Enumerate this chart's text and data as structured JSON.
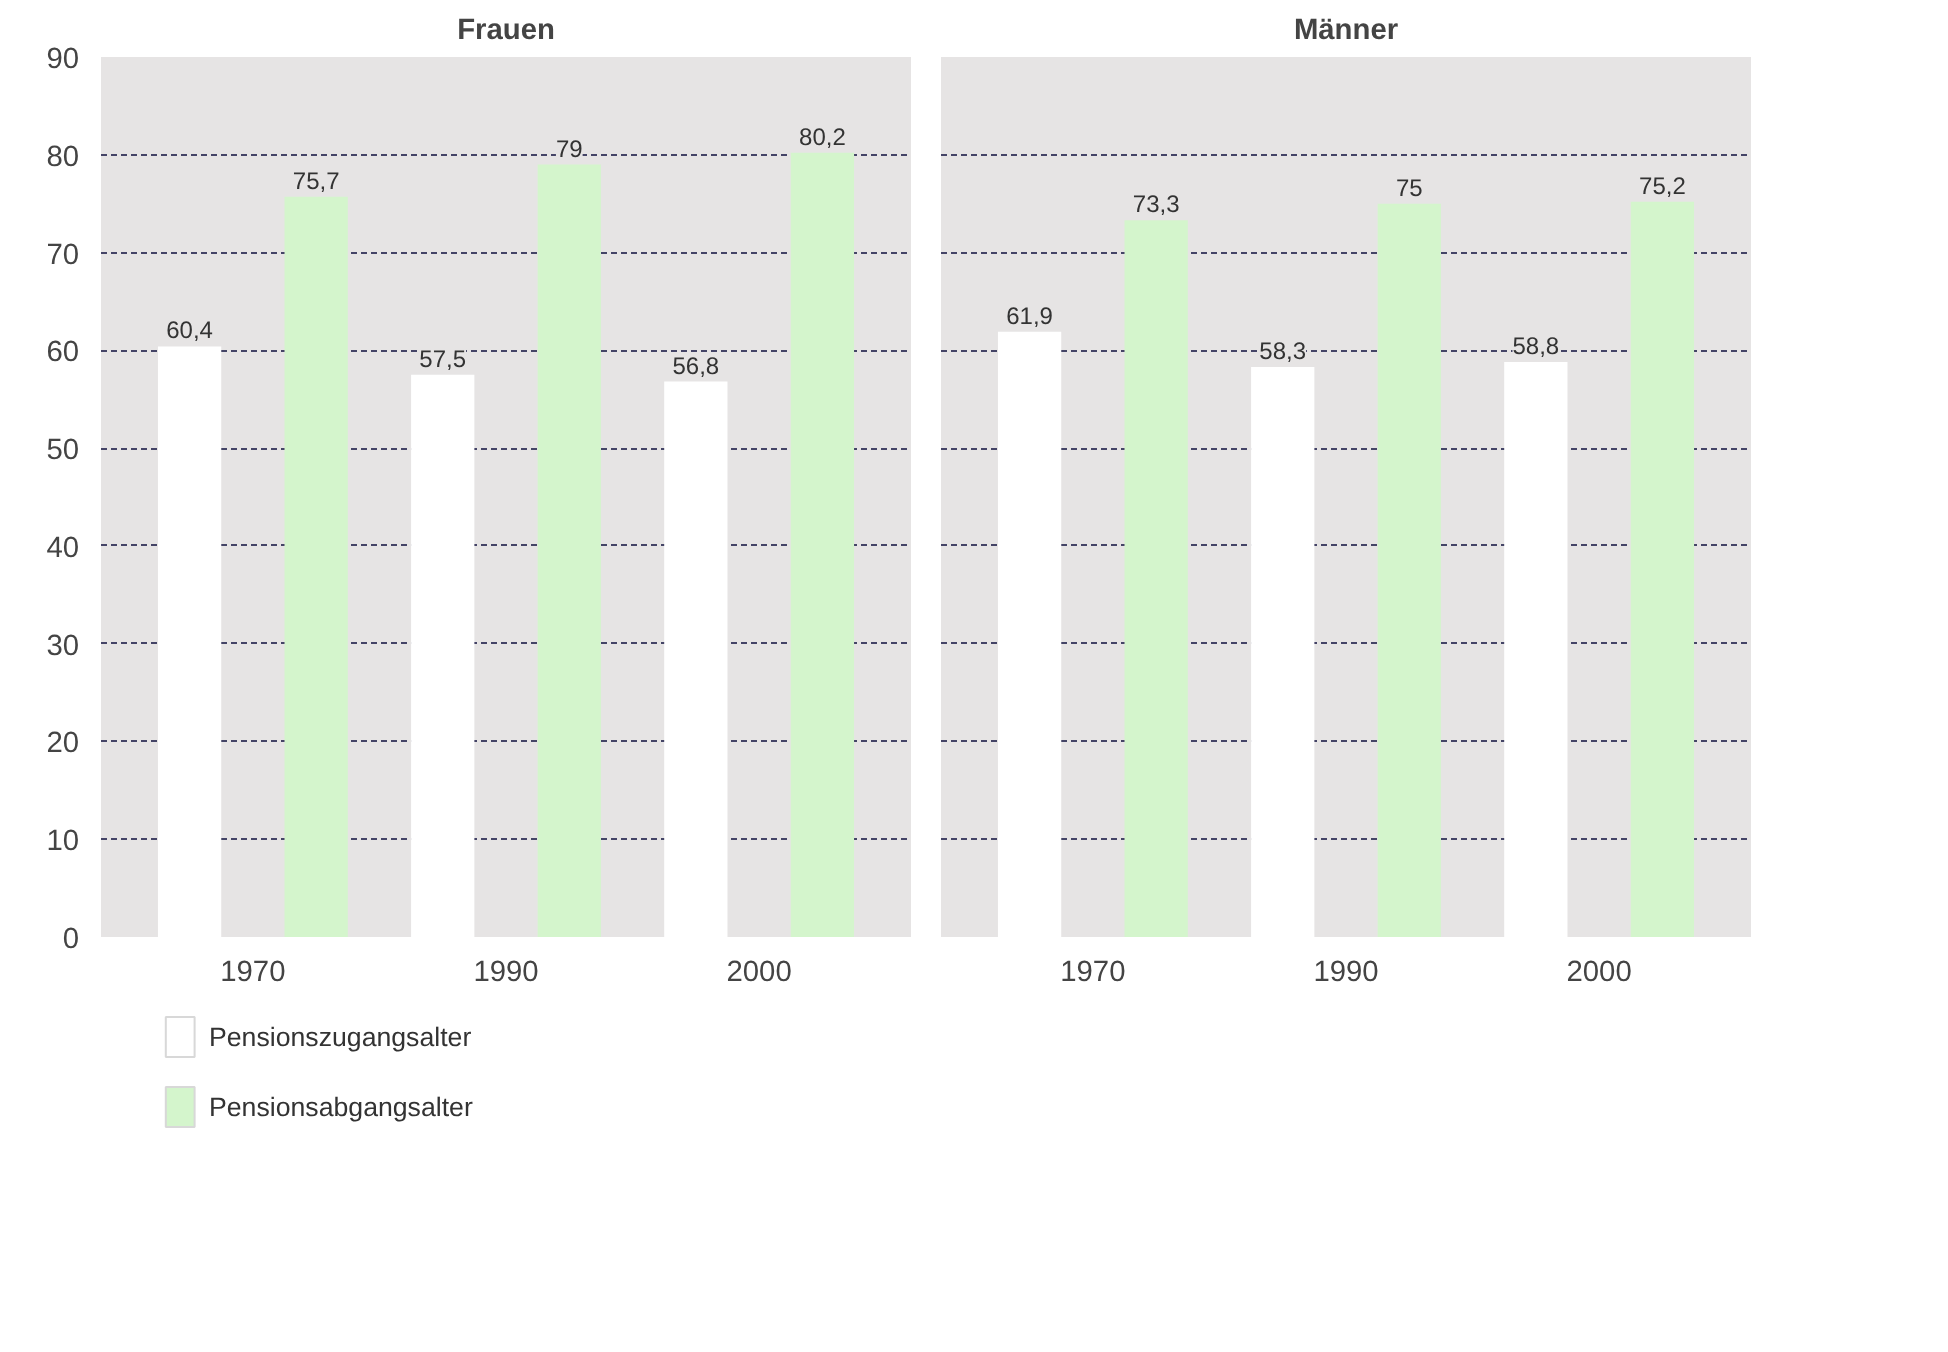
{
  "chart_data": [
    {
      "type": "bar",
      "title": "Frauen",
      "categories": [
        "1970",
        "1990",
        "2000"
      ],
      "series": [
        {
          "name": "Pensionszugangsalter",
          "color": "#ffffff",
          "values": [
            60.4,
            57.5,
            56.8
          ],
          "value_labels": [
            "60,4",
            "57,5",
            "56,8"
          ]
        },
        {
          "name": "Pensionsabgangsalter",
          "color": "#d4f5cc",
          "values": [
            75.7,
            79,
            80.2
          ],
          "value_labels": [
            "75,7",
            "79",
            "80,2"
          ]
        }
      ],
      "ylim": [
        0,
        90
      ],
      "yticks": [
        0,
        10,
        20,
        30,
        40,
        50,
        60,
        70,
        80,
        90
      ],
      "grid": "y",
      "legend": "bottom"
    },
    {
      "type": "bar",
      "title": "Männer",
      "categories": [
        "1970",
        "1990",
        "2000"
      ],
      "series": [
        {
          "color": "#ffffff",
          "values": [
            61.9,
            58.3,
            58.8
          ],
          "value_labels": [
            "61,9",
            "58,3",
            "58,8"
          ]
        },
        {
          "color": "#d4f5cc",
          "values": [
            73.3,
            75,
            75.2
          ],
          "value_labels": [
            "73,3",
            "75",
            "75,2"
          ]
        }
      ],
      "ylim": [
        0,
        90
      ],
      "yticks": [
        0,
        10,
        20,
        30,
        40,
        50,
        60,
        70,
        80,
        90
      ],
      "grid": "y",
      "tick_labels": "x"
    }
  ]
}
